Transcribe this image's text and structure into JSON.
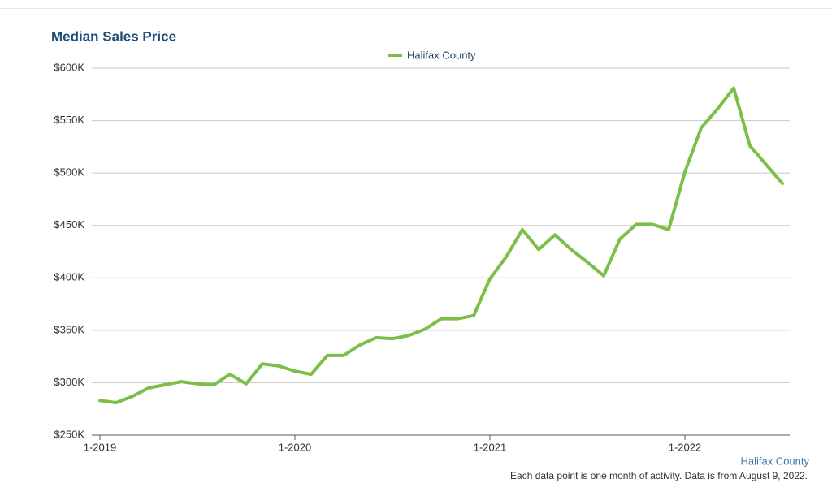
{
  "chart_data": {
    "type": "line",
    "title": "Median Sales Price",
    "categories": [
      "1-2019",
      null,
      null,
      null,
      null,
      null,
      null,
      null,
      null,
      null,
      null,
      null,
      "1-2020",
      null,
      null,
      null,
      null,
      null,
      null,
      null,
      null,
      null,
      null,
      null,
      "1-2021",
      null,
      null,
      null,
      null,
      null,
      null,
      null,
      null,
      null,
      null,
      null,
      "1-2022",
      null,
      null,
      null,
      null,
      null,
      null
    ],
    "series": [
      {
        "name": "Halifax County",
        "color": "#7cbf48",
        "values": [
          283000,
          281000,
          287000,
          295000,
          298000,
          301000,
          299000,
          298000,
          308000,
          299000,
          318000,
          316000,
          311000,
          308000,
          326000,
          326000,
          336000,
          343000,
          342000,
          345000,
          351000,
          361000,
          361000,
          364000,
          399000,
          420000,
          446000,
          427000,
          441000,
          427000,
          415000,
          402000,
          437000,
          451000,
          451000,
          446000,
          501000,
          543000,
          561000,
          581000,
          526000,
          508000,
          490000
        ]
      }
    ],
    "ylim": [
      250000,
      600000
    ],
    "yticks": [
      {
        "value": 250000,
        "label": "$250K"
      },
      {
        "value": 300000,
        "label": "$300K"
      },
      {
        "value": 350000,
        "label": "$350K"
      },
      {
        "value": 400000,
        "label": "$400K"
      },
      {
        "value": 450000,
        "label": "$450K"
      },
      {
        "value": 500000,
        "label": "$500K"
      },
      {
        "value": 550000,
        "label": "$550K"
      },
      {
        "value": 600000,
        "label": "$600K"
      }
    ],
    "grid": true,
    "legend": "top",
    "source_label": "Halifax County",
    "footnote": "Each data point is one month of activity. Data is from August 9, 2022."
  }
}
